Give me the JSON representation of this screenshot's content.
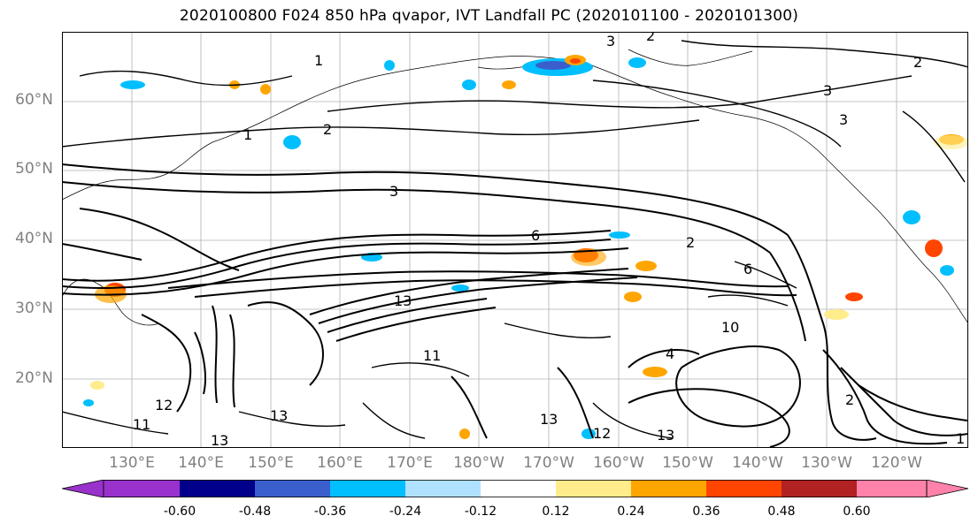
{
  "title": "2020100800 F024 850 hPa qvapor, IVT Landfall PC (2020101100 - 2020101300)",
  "lat_labels": [
    "60°N",
    "50°N",
    "40°N",
    "30°N",
    "20°N"
  ],
  "lon_labels": [
    "130°E",
    "140°E",
    "150°E",
    "160°E",
    "170°E",
    "180°W",
    "170°W",
    "160°W",
    "150°W",
    "140°W",
    "130°W",
    "120°W"
  ],
  "colorbar": {
    "tick_labels": [
      "-0.60",
      "-0.48",
      "-0.36",
      "-0.24",
      "-0.12",
      "0.12",
      "0.24",
      "0.36",
      "0.48",
      "0.60"
    ],
    "colors": [
      "#9932CC",
      "#00008B",
      "#3A5FCD",
      "#00BFFF",
      "#B0E2FF",
      "#FFFFFF",
      "#FFEC8B",
      "#FFA500",
      "#FF4500",
      "#B22222",
      "#FF82AB"
    ]
  },
  "contour_labels": [
    "2",
    "3",
    "1",
    "2",
    "3",
    "2",
    "1",
    "3",
    "3",
    "2",
    "11",
    "13",
    "13",
    "12",
    "11",
    "13",
    "13",
    "12",
    "13",
    "1",
    "6",
    "10",
    "2",
    "4",
    "6"
  ]
}
